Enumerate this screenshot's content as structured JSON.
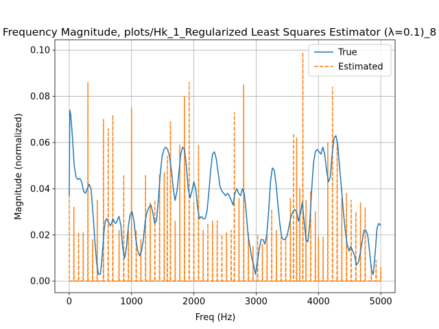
{
  "chart_data": {
    "type": "line",
    "title": "Frequency Magnitude, plots/Hk_1_Regularized Least Squares Estimator (λ=0.1)_8",
    "xlabel": "Freq (Hz)",
    "ylabel": "Magnitude (normalized)",
    "xlim": [
      -230,
      5230
    ],
    "ylim": [
      -0.005,
      0.1045
    ],
    "xticks": [
      0,
      1000,
      2000,
      3000,
      4000,
      5000
    ],
    "yticks": [
      0.0,
      0.02,
      0.04,
      0.06,
      0.08,
      0.1
    ],
    "xtick_labels": [
      "0",
      "1000",
      "2000",
      "3000",
      "4000",
      "5000"
    ],
    "ytick_labels": [
      "0.00",
      "0.02",
      "0.04",
      "0.06",
      "0.08",
      "0.10"
    ],
    "grid": true,
    "legend_position": "top-right",
    "series": [
      {
        "name": "True",
        "color": "#1f77b4",
        "style": "solid",
        "x": [
          0,
          10,
          25,
          50,
          80,
          110,
          140,
          170,
          200,
          230,
          260,
          290,
          320,
          350,
          380,
          410,
          440,
          470,
          500,
          520,
          540,
          560,
          580,
          600,
          620,
          640,
          660,
          680,
          700,
          720,
          740,
          760,
          780,
          800,
          830,
          860,
          890,
          920,
          950,
          980,
          1010,
          1040,
          1070,
          1100,
          1130,
          1160,
          1190,
          1220,
          1250,
          1280,
          1310,
          1340,
          1370,
          1400,
          1430,
          1460,
          1490,
          1520,
          1550,
          1580,
          1610,
          1640,
          1670,
          1700,
          1730,
          1760,
          1790,
          1820,
          1850,
          1880,
          1910,
          1940,
          1970,
          2000,
          2030,
          2060,
          2090,
          2120,
          2150,
          2180,
          2210,
          2240,
          2270,
          2300,
          2330,
          2360,
          2390,
          2420,
          2450,
          2480,
          2510,
          2540,
          2570,
          2600,
          2630,
          2660,
          2690,
          2720,
          2750,
          2780,
          2810,
          2840,
          2870,
          2900,
          2930,
          2960,
          2990,
          3020,
          3050,
          3080,
          3110,
          3140,
          3170,
          3200,
          3230,
          3260,
          3290,
          3320,
          3350,
          3380,
          3410,
          3440,
          3470,
          3500,
          3530,
          3560,
          3590,
          3620,
          3650,
          3680,
          3710,
          3740,
          3770,
          3800,
          3830,
          3860,
          3890,
          3920,
          3950,
          3980,
          4010,
          4040,
          4070,
          4100,
          4130,
          4160,
          4190,
          4220,
          4250,
          4280,
          4310,
          4340,
          4370,
          4400,
          4430,
          4460,
          4490,
          4520,
          4550,
          4580,
          4610,
          4640,
          4670,
          4700,
          4730,
          4760,
          4790,
          4820,
          4850,
          4880,
          4910,
          4940,
          4970,
          5000
        ],
        "values": [
          0.037,
          0.074,
          0.072,
          0.063,
          0.05,
          0.045,
          0.044,
          0.0445,
          0.043,
          0.039,
          0.038,
          0.04,
          0.042,
          0.04,
          0.03,
          0.018,
          0.008,
          0.003,
          0.003,
          0.008,
          0.015,
          0.022,
          0.026,
          0.027,
          0.026,
          0.025,
          0.024,
          0.025,
          0.027,
          0.026,
          0.025,
          0.0255,
          0.027,
          0.028,
          0.024,
          0.014,
          0.01,
          0.015,
          0.024,
          0.029,
          0.03,
          0.026,
          0.018,
          0.013,
          0.011,
          0.013,
          0.018,
          0.026,
          0.03,
          0.032,
          0.033,
          0.03,
          0.025,
          0.026,
          0.035,
          0.046,
          0.054,
          0.057,
          0.058,
          0.057,
          0.054,
          0.048,
          0.04,
          0.035,
          0.039,
          0.047,
          0.055,
          0.058,
          0.057,
          0.05,
          0.04,
          0.036,
          0.039,
          0.043,
          0.04,
          0.032,
          0.027,
          0.028,
          0.027,
          0.027,
          0.03,
          0.038,
          0.048,
          0.055,
          0.056,
          0.053,
          0.047,
          0.041,
          0.039,
          0.038,
          0.037,
          0.038,
          0.037,
          0.035,
          0.033,
          0.038,
          0.04,
          0.038,
          0.037,
          0.04,
          0.038,
          0.03,
          0.02,
          0.015,
          0.01,
          0.007,
          0.003,
          0.008,
          0.014,
          0.018,
          0.018,
          0.016,
          0.02,
          0.03,
          0.043,
          0.049,
          0.048,
          0.042,
          0.033,
          0.025,
          0.019,
          0.018,
          0.018,
          0.02,
          0.024,
          0.028,
          0.03,
          0.031,
          0.03,
          0.026,
          0.029,
          0.034,
          0.026,
          0.018,
          0.017,
          0.025,
          0.039,
          0.051,
          0.056,
          0.057,
          0.056,
          0.055,
          0.058,
          0.055,
          0.048,
          0.043,
          0.045,
          0.055,
          0.062,
          0.063,
          0.059,
          0.049,
          0.04,
          0.03,
          0.022,
          0.016,
          0.013,
          0.015,
          0.013,
          0.011,
          0.007,
          0.008,
          0.012,
          0.017,
          0.022,
          0.022,
          0.02,
          0.013,
          0.005,
          0.003,
          0.012,
          0.023,
          0.025,
          0.024
        ]
      },
      {
        "name": "Estimated",
        "color": "#ff7f0e",
        "style": "dashed",
        "spikes": [
          [
            0,
            0.04
          ],
          [
            75,
            0.032
          ],
          [
            150,
            0.021
          ],
          [
            225,
            0.021
          ],
          [
            300,
            0.086
          ],
          [
            375,
            0.018
          ],
          [
            450,
            0.035
          ],
          [
            550,
            0.07
          ],
          [
            625,
            0.066
          ],
          [
            700,
            0.072
          ],
          [
            800,
            0.022
          ],
          [
            875,
            0.046
          ],
          [
            950,
            0.022
          ],
          [
            1000,
            0.075
          ],
          [
            1075,
            0.022
          ],
          [
            1150,
            0.018
          ],
          [
            1225,
            0.046
          ],
          [
            1300,
            0.034
          ],
          [
            1375,
            0.035
          ],
          [
            1450,
            0.046
          ],
          [
            1525,
            0.047
          ],
          [
            1575,
            0.054
          ],
          [
            1625,
            0.069
          ],
          [
            1700,
            0.026
          ],
          [
            1775,
            0.059
          ],
          [
            1850,
            0.08
          ],
          [
            1925,
            0.086
          ],
          [
            2000,
            0.034
          ],
          [
            2075,
            0.059
          ],
          [
            2150,
            0.022
          ],
          [
            2225,
            0.025
          ],
          [
            2300,
            0.026
          ],
          [
            2375,
            0.026
          ],
          [
            2450,
            0.02
          ],
          [
            2525,
            0.021
          ],
          [
            2600,
            0.022
          ],
          [
            2650,
            0.073
          ],
          [
            2725,
            0.036
          ],
          [
            2800,
            0.085
          ],
          [
            2875,
            0.021
          ],
          [
            2950,
            0.015
          ],
          [
            3025,
            0.02
          ],
          [
            3100,
            0.016
          ],
          [
            3175,
            0.02
          ],
          [
            3250,
            0.031
          ],
          [
            3325,
            0.022
          ],
          [
            3400,
            0.019
          ],
          [
            3475,
            0.019
          ],
          [
            3550,
            0.036
          ],
          [
            3600,
            0.064
          ],
          [
            3650,
            0.062
          ],
          [
            3700,
            0.04
          ],
          [
            3750,
            0.099
          ],
          [
            3800,
            0.035
          ],
          [
            3875,
            0.039
          ],
          [
            3950,
            0.03
          ],
          [
            4000,
            0.019
          ],
          [
            4075,
            0.019
          ],
          [
            4150,
            0.06
          ],
          [
            4225,
            0.084
          ],
          [
            4300,
            0.061
          ],
          [
            4375,
            0.036
          ],
          [
            4450,
            0.038
          ],
          [
            4525,
            0.035
          ],
          [
            4600,
            0.03
          ],
          [
            4675,
            0.034
          ],
          [
            4750,
            0.032
          ],
          [
            4850,
            0.007
          ],
          [
            4925,
            0.009
          ],
          [
            5000,
            0.006
          ]
        ]
      }
    ]
  }
}
